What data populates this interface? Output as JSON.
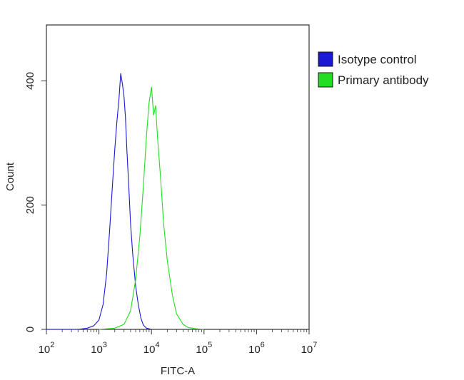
{
  "chart_data": {
    "type": "line",
    "title": "",
    "xlabel": "FITC-A",
    "ylabel": "Count",
    "x_scale": "log",
    "xlim": [
      100,
      10000000
    ],
    "ylim": [
      0,
      490
    ],
    "x_ticks": [
      {
        "value": 100,
        "base": "10",
        "exp": "2"
      },
      {
        "value": 1000,
        "base": "10",
        "exp": "3"
      },
      {
        "value": 10000,
        "base": "10",
        "exp": "4"
      },
      {
        "value": 100000,
        "base": "10",
        "exp": "5"
      },
      {
        "value": 1000000,
        "base": "10",
        "exp": "6"
      },
      {
        "value": 10000000,
        "base": "10",
        "exp": "7"
      }
    ],
    "y_ticks": [
      {
        "value": 0,
        "label": "0"
      },
      {
        "value": 200,
        "label": "200"
      },
      {
        "value": 400,
        "label": "400"
      }
    ],
    "grid": false,
    "legend_position": "top-right",
    "series": [
      {
        "name": "Isotype control",
        "color": "#1a1ad6",
        "x": [
          100,
          200,
          400,
          600,
          800,
          1000,
          1200,
          1400,
          1600,
          1800,
          2000,
          2200,
          2400,
          2600,
          2800,
          3000,
          3200,
          3400,
          3700,
          4000,
          4400,
          5000,
          5600,
          6300,
          7000,
          8000,
          9000,
          10000
        ],
        "y": [
          0,
          0,
          0,
          2,
          6,
          15,
          40,
          90,
          160,
          230,
          290,
          335,
          370,
          412,
          395,
          375,
          340,
          290,
          230,
          170,
          120,
          70,
          40,
          18,
          7,
          2,
          1,
          0
        ]
      },
      {
        "name": "Primary antibody",
        "color": "#22dd22",
        "x": [
          1000,
          2000,
          3000,
          4000,
          5000,
          6000,
          7000,
          8000,
          9000,
          10000,
          11000,
          12000,
          13000,
          15000,
          17000,
          20000,
          25000,
          30000,
          40000,
          50000,
          70000,
          100000
        ],
        "y": [
          0,
          2,
          8,
          30,
          80,
          150,
          230,
          310,
          365,
          390,
          345,
          360,
          310,
          240,
          170,
          110,
          55,
          25,
          8,
          3,
          1,
          0
        ]
      }
    ]
  }
}
